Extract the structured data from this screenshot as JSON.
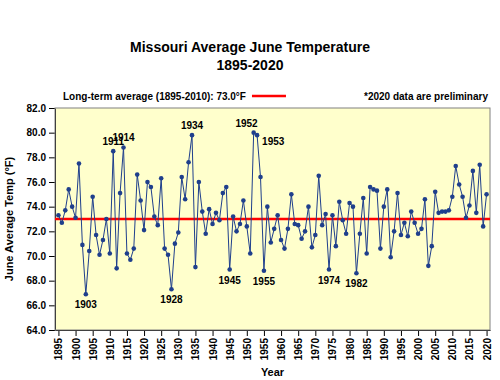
{
  "chart_data": {
    "type": "line",
    "title": "Missouri Average June Temperature",
    "subtitle": "1895-2020",
    "x_label": "Year",
    "y_label": "June Average Temp (°F)",
    "color": "#1f3f8c",
    "marker": "circle",
    "line_style": "solid",
    "grid": false,
    "x": [
      1895,
      1896,
      1897,
      1898,
      1899,
      1900,
      1901,
      1902,
      1903,
      1904,
      1905,
      1906,
      1907,
      1908,
      1909,
      1910,
      1911,
      1912,
      1913,
      1914,
      1915,
      1916,
      1917,
      1918,
      1919,
      1920,
      1921,
      1922,
      1923,
      1924,
      1925,
      1926,
      1927,
      1928,
      1929,
      1930,
      1931,
      1932,
      1933,
      1934,
      1935,
      1936,
      1937,
      1938,
      1939,
      1940,
      1941,
      1942,
      1943,
      1944,
      1945,
      1946,
      1947,
      1948,
      1949,
      1950,
      1951,
      1952,
      1953,
      1954,
      1955,
      1956,
      1957,
      1958,
      1959,
      1960,
      1961,
      1962,
      1963,
      1964,
      1965,
      1966,
      1967,
      1968,
      1969,
      1970,
      1971,
      1972,
      1973,
      1974,
      1975,
      1976,
      1977,
      1978,
      1979,
      1980,
      1981,
      1982,
      1983,
      1984,
      1985,
      1986,
      1987,
      1988,
      1989,
      1990,
      1991,
      1992,
      1993,
      1994,
      1995,
      1996,
      1997,
      1998,
      1999,
      2000,
      2001,
      2002,
      2003,
      2004,
      2005,
      2006,
      2007,
      2008,
      2009,
      2010,
      2011,
      2012,
      2013,
      2014,
      2015,
      2016,
      2017,
      2018,
      2019,
      2020
    ],
    "values": [
      73.3,
      72.7,
      73.7,
      75.4,
      74.0,
      73.1,
      77.5,
      70.9,
      66.9,
      70.4,
      74.8,
      71.7,
      70.1,
      71.3,
      73.0,
      70.2,
      78.5,
      69.0,
      75.1,
      78.8,
      70.2,
      69.7,
      70.6,
      76.6,
      74.5,
      72.1,
      76.0,
      75.6,
      73.2,
      72.5,
      76.3,
      70.6,
      70.1,
      67.3,
      71.0,
      71.9,
      76.4,
      74.6,
      77.6,
      79.8,
      69.1,
      76.0,
      73.6,
      71.8,
      73.8,
      72.6,
      73.5,
      72.9,
      75.1,
      75.6,
      68.9,
      73.2,
      72.0,
      72.6,
      74.5,
      72.4,
      70.2,
      80.0,
      79.8,
      76.4,
      68.8,
      74.0,
      71.1,
      72.2,
      73.3,
      71.3,
      70.6,
      72.2,
      75.0,
      72.6,
      72.5,
      71.4,
      72.0,
      74.0,
      70.7,
      71.7,
      76.5,
      72.5,
      73.4,
      68.9,
      73.3,
      70.8,
      74.4,
      72.9,
      71.8,
      74.3,
      74.0,
      68.6,
      71.8,
      74.7,
      70.2,
      75.6,
      75.4,
      75.3,
      70.6,
      74.0,
      75.4,
      69.9,
      72.0,
      75.1,
      71.7,
      72.7,
      71.6,
      73.6,
      72.7,
      71.8,
      72.2,
      74.6,
      69.2,
      70.8,
      75.2,
      73.5,
      73.6,
      73.6,
      73.7,
      74.8,
      77.3,
      75.8,
      74.8,
      73.1,
      74.1,
      76.9,
      73.5,
      77.4,
      72.4,
      75.0
    ],
    "xlim": [
      1894,
      2021
    ],
    "xticks": [
      1895,
      1900,
      1905,
      1910,
      1915,
      1920,
      1925,
      1930,
      1935,
      1940,
      1945,
      1950,
      1955,
      1960,
      1965,
      1970,
      1975,
      1980,
      1985,
      1990,
      1995,
      2000,
      2005,
      2010,
      2015,
      2020
    ],
    "ylim": [
      64,
      82
    ],
    "yticks": [
      {
        "value": 64,
        "label": "64.0"
      },
      {
        "value": 66,
        "label": "66.0"
      },
      {
        "value": 68,
        "label": "68.0"
      },
      {
        "value": 70,
        "label": "70.0"
      },
      {
        "value": 72,
        "label": "72.0"
      },
      {
        "value": 74,
        "label": "74.0"
      },
      {
        "value": 76,
        "label": "76.0"
      },
      {
        "value": 78,
        "label": "78.0"
      },
      {
        "value": 80,
        "label": "80.0"
      },
      {
        "value": 82,
        "label": "82.0"
      }
    ],
    "reference_line": {
      "value": 73.0,
      "label": "Long-term average (1895-2010): 73.0°F",
      "color": "#ff0000"
    },
    "note": "*2020 data are preliminary",
    "annotations": [
      {
        "text": "1903",
        "x": 1903
      },
      {
        "text": "1911",
        "x": 1911
      },
      {
        "text": "1914",
        "x": 1914
      },
      {
        "text": "1928",
        "x": 1928
      },
      {
        "text": "1934",
        "x": 1934
      },
      {
        "text": "1945",
        "x": 1945
      },
      {
        "text": "1952",
        "x": 1952
      },
      {
        "text": "1953",
        "x": 1953
      },
      {
        "text": "1955",
        "x": 1955
      },
      {
        "text": "1974",
        "x": 1974
      },
      {
        "text": "1982",
        "x": 1982
      }
    ]
  }
}
